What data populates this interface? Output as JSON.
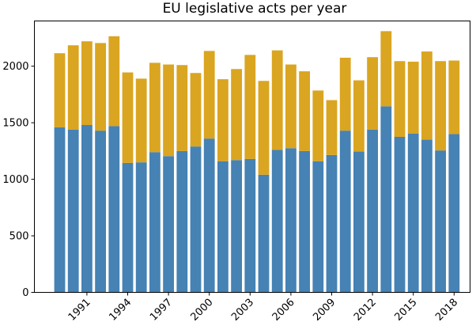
{
  "chart_data": {
    "type": "bar",
    "stacked": true,
    "title": "EU legislative acts per year",
    "xlabel": "",
    "ylabel": "",
    "categories": [
      1989,
      1990,
      1991,
      1992,
      1993,
      1994,
      1995,
      1996,
      1997,
      1998,
      1999,
      2000,
      2001,
      2002,
      2003,
      2004,
      2005,
      2006,
      2007,
      2008,
      2009,
      2010,
      2011,
      2012,
      2013,
      2014,
      2015,
      2016,
      2017,
      2018,
      2019
    ],
    "x_tick_labels": [
      "1991",
      "1994",
      "1997",
      "2000",
      "2003",
      "2006",
      "2009",
      "2012",
      "2015",
      "2018"
    ],
    "y_ticks": [
      0,
      500,
      1000,
      1500,
      2000
    ],
    "ylim": [
      0,
      2400
    ],
    "grid": false,
    "legend": "none",
    "series": [
      {
        "color": "#4682b4",
        "values": [
          1460,
          1440,
          1480,
          1430,
          1470,
          1145,
          1150,
          1240,
          1205,
          1250,
          1290,
          1360,
          1160,
          1170,
          1180,
          1040,
          1260,
          1275,
          1250,
          1160,
          1215,
          1430,
          1245,
          1440,
          1645,
          1375,
          1405,
          1350,
          1255,
          1400,
          0
        ]
      },
      {
        "color": "#daa520",
        "values": [
          655,
          745,
          740,
          775,
          795,
          800,
          740,
          790,
          810,
          760,
          650,
          775,
          725,
          805,
          920,
          830,
          880,
          740,
          705,
          625,
          485,
          645,
          630,
          640,
          665,
          670,
          635,
          780,
          790,
          650,
          0
        ]
      }
    ]
  }
}
